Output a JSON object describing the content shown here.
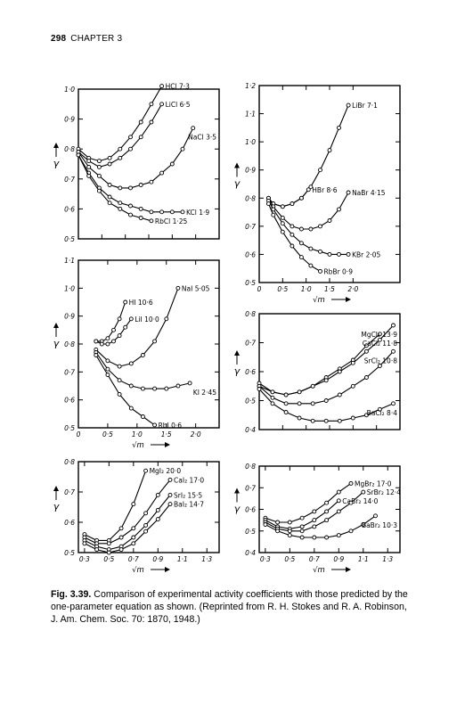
{
  "header": {
    "page_number": "298",
    "chapter": "CHAPTER 3"
  },
  "caption": {
    "label": "Fig. 3.39.",
    "text": "Comparison of experimental activity coefficients with those predicted by the one-parameter equation as shown. (Reprinted from R. H. Stokes and R. A. Robinson, J. Am. Chem. Soc. 70: 1870, 1948.)"
  },
  "chart_data": [
    {
      "type": "line",
      "panel": "top-left",
      "ylabel": "γ",
      "ylim": [
        0.5,
        1.0
      ],
      "yticks": [
        "0·5",
        "0·6",
        "0·7",
        "0·8",
        "0·9",
        "1·0"
      ],
      "xlim": [
        0.3,
        3.0
      ],
      "series": [
        {
          "name": "HCl 7·3",
          "x": [
            0.3,
            0.5,
            0.7,
            0.9,
            1.1,
            1.3,
            1.5,
            1.7,
            1.9
          ],
          "y": [
            0.8,
            0.77,
            0.76,
            0.77,
            0.8,
            0.84,
            0.89,
            0.95,
            1.01
          ]
        },
        {
          "name": "LiCl 6·5",
          "x": [
            0.3,
            0.5,
            0.7,
            0.9,
            1.1,
            1.3,
            1.5,
            1.7,
            1.9
          ],
          "y": [
            0.79,
            0.76,
            0.74,
            0.75,
            0.77,
            0.8,
            0.84,
            0.89,
            0.95
          ]
        },
        {
          "name": "NaCl 3·5",
          "x": [
            0.3,
            0.5,
            0.7,
            0.9,
            1.1,
            1.3,
            1.5,
            1.7,
            1.9,
            2.1,
            2.3,
            2.5
          ],
          "y": [
            0.79,
            0.74,
            0.71,
            0.68,
            0.67,
            0.67,
            0.68,
            0.69,
            0.72,
            0.75,
            0.8,
            0.87
          ]
        },
        {
          "name": "KCl 1·9",
          "x": [
            0.3,
            0.5,
            0.7,
            0.9,
            1.1,
            1.3,
            1.5,
            1.7,
            1.9,
            2.1,
            2.3
          ],
          "y": [
            0.78,
            0.72,
            0.67,
            0.64,
            0.62,
            0.61,
            0.6,
            0.59,
            0.59,
            0.59,
            0.59
          ]
        },
        {
          "name": "RbCl 1·25",
          "x": [
            0.3,
            0.5,
            0.7,
            0.9,
            1.1,
            1.3,
            1.5,
            1.7
          ],
          "y": [
            0.78,
            0.71,
            0.66,
            0.62,
            0.6,
            0.58,
            0.57,
            0.56
          ]
        }
      ]
    },
    {
      "type": "line",
      "panel": "top-right",
      "ylabel": "γ",
      "xlabel": "√m",
      "ylim": [
        0.5,
        1.2
      ],
      "yticks": [
        "0·5",
        "0·6",
        "0·7",
        "0·8",
        "0·9",
        "1·0",
        "1·1",
        "1·2"
      ],
      "xlim": [
        0,
        3.0
      ],
      "xticks": [
        "0",
        "0·5",
        "1·0",
        "1·5",
        "2·0"
      ],
      "series": [
        {
          "name": "LiBr 7·1",
          "x": [
            0.2,
            0.3,
            0.5,
            0.7,
            0.9,
            1.1,
            1.3,
            1.5,
            1.7,
            1.9
          ],
          "y": [
            0.8,
            0.78,
            0.77,
            0.78,
            0.8,
            0.84,
            0.9,
            0.97,
            1.05,
            1.13
          ]
        },
        {
          "name": "HBr 8·6",
          "x": [
            0.2,
            0.3,
            0.5,
            0.7,
            0.9,
            1.05
          ],
          "y": [
            0.8,
            0.78,
            0.77,
            0.78,
            0.8,
            0.83
          ]
        },
        {
          "name": "NaBr 4·15",
          "x": [
            0.2,
            0.3,
            0.5,
            0.7,
            0.9,
            1.1,
            1.3,
            1.5,
            1.7,
            1.9
          ],
          "y": [
            0.8,
            0.77,
            0.73,
            0.7,
            0.69,
            0.69,
            0.7,
            0.72,
            0.76,
            0.82
          ]
        },
        {
          "name": "KBr 2·05",
          "x": [
            0.2,
            0.3,
            0.5,
            0.7,
            0.9,
            1.1,
            1.3,
            1.5,
            1.7,
            1.9
          ],
          "y": [
            0.79,
            0.76,
            0.71,
            0.67,
            0.64,
            0.62,
            0.61,
            0.6,
            0.6,
            0.6
          ]
        },
        {
          "name": "RbBr 0·9",
          "x": [
            0.2,
            0.3,
            0.5,
            0.7,
            0.9,
            1.1,
            1.3
          ],
          "y": [
            0.78,
            0.74,
            0.68,
            0.63,
            0.59,
            0.56,
            0.54
          ]
        }
      ]
    },
    {
      "type": "line",
      "panel": "middle-left",
      "ylabel": "γ",
      "xlabel": "√m",
      "ylim": [
        0.5,
        1.1
      ],
      "yticks": [
        "0·5",
        "0·6",
        "0·7",
        "0·8",
        "0·9",
        "1·0",
        "1·1"
      ],
      "xlim": [
        0,
        2.4
      ],
      "xticks": [
        "0",
        "0·5",
        "1·0",
        "1·5",
        "2·0"
      ],
      "series": [
        {
          "name": "HI 10·6",
          "x": [
            0.3,
            0.4,
            0.5,
            0.6,
            0.7,
            0.8
          ],
          "y": [
            0.81,
            0.81,
            0.82,
            0.85,
            0.89,
            0.95
          ]
        },
        {
          "name": "LiI 10·0",
          "x": [
            0.3,
            0.4,
            0.5,
            0.6,
            0.7,
            0.8,
            0.9
          ],
          "y": [
            0.81,
            0.8,
            0.8,
            0.81,
            0.83,
            0.86,
            0.89
          ]
        },
        {
          "name": "NaI 5·05",
          "x": [
            0.3,
            0.5,
            0.7,
            0.9,
            1.1,
            1.3,
            1.5,
            1.7
          ],
          "y": [
            0.78,
            0.74,
            0.72,
            0.73,
            0.76,
            0.81,
            0.89,
            1.0
          ]
        },
        {
          "name": "KI 2·45",
          "x": [
            0.3,
            0.5,
            0.7,
            0.9,
            1.1,
            1.3,
            1.5,
            1.7,
            1.9
          ],
          "y": [
            0.77,
            0.71,
            0.67,
            0.65,
            0.64,
            0.64,
            0.64,
            0.65,
            0.66
          ]
        },
        {
          "name": "RbI 0·6",
          "x": [
            0.3,
            0.5,
            0.7,
            0.9,
            1.1,
            1.3
          ],
          "y": [
            0.76,
            0.69,
            0.62,
            0.57,
            0.54,
            0.51
          ]
        }
      ]
    },
    {
      "type": "line",
      "panel": "middle-right",
      "ylabel": "γ",
      "ylim": [
        0.4,
        0.8
      ],
      "yticks": [
        "0·4",
        "0·5",
        "0·6",
        "0·7",
        "0·8"
      ],
      "xlim": [
        0.3,
        1.35
      ],
      "series": [
        {
          "name": "CaCl₂ 11·8",
          "x": [
            0.3,
            0.4,
            0.5,
            0.6,
            0.7,
            0.8,
            0.9,
            1.0,
            1.1,
            1.2
          ],
          "y": [
            0.56,
            0.53,
            0.52,
            0.53,
            0.55,
            0.58,
            0.61,
            0.64,
            0.69,
            0.73
          ]
        },
        {
          "name": "MgCl₂ 13·9",
          "x": [
            0.3,
            0.4,
            0.5,
            0.6,
            0.7,
            0.8,
            0.9,
            1.0,
            1.1,
            1.2,
            1.3
          ],
          "y": [
            0.55,
            0.53,
            0.52,
            0.53,
            0.55,
            0.57,
            0.6,
            0.63,
            0.67,
            0.71,
            0.76
          ]
        },
        {
          "name": "SrCl₂ 10·8",
          "x": [
            0.3,
            0.4,
            0.5,
            0.6,
            0.7,
            0.8,
            0.9,
            1.0,
            1.1,
            1.2,
            1.3
          ],
          "y": [
            0.55,
            0.51,
            0.49,
            0.49,
            0.49,
            0.5,
            0.52,
            0.55,
            0.58,
            0.62,
            0.67
          ]
        },
        {
          "name": "BaCl₂ 8·4",
          "x": [
            0.3,
            0.4,
            0.5,
            0.6,
            0.7,
            0.8,
            0.9,
            1.0,
            1.1,
            1.2,
            1.3
          ],
          "y": [
            0.54,
            0.49,
            0.46,
            0.44,
            0.43,
            0.43,
            0.43,
            0.44,
            0.45,
            0.47,
            0.49
          ]
        }
      ]
    },
    {
      "type": "line",
      "panel": "bottom-left",
      "ylabel": "γ",
      "xlabel": "√m",
      "ylim": [
        0.5,
        0.8
      ],
      "yticks": [
        "0·5",
        "0·6",
        "0·7",
        "0·8"
      ],
      "xlim": [
        0.25,
        1.4
      ],
      "xticks": [
        "0·3",
        "0·5",
        "0·7",
        "0·9",
        "1·1",
        "1·3"
      ],
      "series": [
        {
          "name": "MgI₂ 20·0",
          "x": [
            0.3,
            0.4,
            0.5,
            0.6,
            0.7,
            0.8
          ],
          "y": [
            0.56,
            0.54,
            0.54,
            0.58,
            0.66,
            0.77
          ]
        },
        {
          "name": "CaI₂ 17·0",
          "x": [
            0.3,
            0.4,
            0.5,
            0.6,
            0.7,
            0.8,
            0.9,
            1.0
          ],
          "y": [
            0.55,
            0.53,
            0.53,
            0.55,
            0.58,
            0.63,
            0.69,
            0.74
          ]
        },
        {
          "name": "SrI₂ 15·5",
          "x": [
            0.3,
            0.4,
            0.5,
            0.6,
            0.7,
            0.8,
            0.9,
            1.0
          ],
          "y": [
            0.54,
            0.52,
            0.51,
            0.52,
            0.55,
            0.59,
            0.64,
            0.69
          ]
        },
        {
          "name": "BaI₂ 14·7",
          "x": [
            0.3,
            0.4,
            0.5,
            0.6,
            0.7,
            0.8,
            0.9,
            1.0
          ],
          "y": [
            0.53,
            0.51,
            0.5,
            0.51,
            0.53,
            0.57,
            0.61,
            0.66
          ]
        }
      ]
    },
    {
      "type": "line",
      "panel": "bottom-right",
      "ylabel": "γ",
      "xlabel": "√m",
      "ylim": [
        0.4,
        0.8
      ],
      "yticks": [
        "0·4",
        "0·5",
        "0·6",
        "0·7",
        "0·8"
      ],
      "xlim": [
        0.25,
        1.4
      ],
      "xticks": [
        "0·3",
        "0·5",
        "0·7",
        "0·9",
        "1·1",
        "1·3"
      ],
      "series": [
        {
          "name": "MgBr₂ 17·0",
          "x": [
            0.3,
            0.4,
            0.5,
            0.6,
            0.7,
            0.8,
            0.9,
            1.0
          ],
          "y": [
            0.56,
            0.54,
            0.54,
            0.56,
            0.59,
            0.63,
            0.68,
            0.72
          ]
        },
        {
          "name": "CaBr₂ 14·0",
          "x": [
            0.3,
            0.4,
            0.5,
            0.6,
            0.7,
            0.8,
            0.9
          ],
          "y": [
            0.55,
            0.52,
            0.51,
            0.52,
            0.55,
            0.59,
            0.64
          ]
        },
        {
          "name": "SrBr₂ 12·4",
          "x": [
            0.3,
            0.4,
            0.5,
            0.6,
            0.7,
            0.8,
            0.9,
            1.0,
            1.1
          ],
          "y": [
            0.54,
            0.51,
            0.5,
            0.5,
            0.52,
            0.55,
            0.59,
            0.63,
            0.68
          ]
        },
        {
          "name": "BaBr₂ 10·3",
          "x": [
            0.3,
            0.4,
            0.5,
            0.6,
            0.7,
            0.8,
            0.9,
            1.0,
            1.1,
            1.2
          ],
          "y": [
            0.53,
            0.5,
            0.48,
            0.47,
            0.47,
            0.47,
            0.48,
            0.5,
            0.53,
            0.57
          ]
        }
      ]
    }
  ]
}
